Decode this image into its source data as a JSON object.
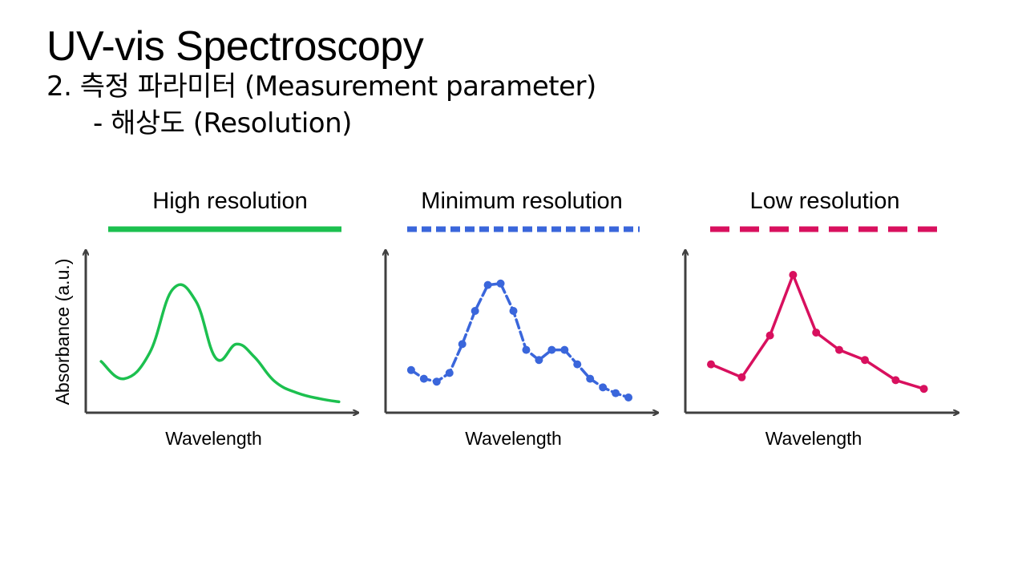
{
  "slide": {
    "title": "UV-vis Spectroscopy",
    "subtitle": "2.  측정 파라미터 (Measurement parameter)",
    "subsubtitle": "- 해상도 (Resolution)"
  },
  "colors": {
    "high": "#1cc04f",
    "minimum": "#3a66db",
    "low": "#d8105e",
    "axis": "#404040"
  },
  "chart_data": [
    {
      "type": "line",
      "title": "High resolution",
      "legend_style": "solid",
      "xlabel": "Wavelength",
      "ylabel": "Absorbance (a.u.)",
      "xlim": [
        0,
        10
      ],
      "ylim": [
        0,
        10
      ],
      "x": [
        0.6,
        1.5,
        2.5,
        3.4,
        4.3,
        5.1,
        5.9,
        6.6,
        7.4,
        8.3,
        9.2,
        9.9
      ],
      "values": [
        3.0,
        1.8,
        3.6,
        8.0,
        7.2,
        3.2,
        4.2,
        3.3,
        1.6,
        0.8,
        0.4,
        0.2
      ],
      "markers": false,
      "smooth": true
    },
    {
      "type": "line",
      "title": "Minimum resolution",
      "legend_style": "dashed",
      "xlabel": "Wavelength",
      "ylabel": "",
      "xlim": [
        0,
        10
      ],
      "ylim": [
        0,
        10
      ],
      "x": [
        1.0,
        1.5,
        2.0,
        2.5,
        3.0,
        3.5,
        4.0,
        4.5,
        5.0,
        5.5,
        6.0,
        6.5,
        7.0,
        7.5,
        8.0,
        8.5,
        9.0,
        9.5
      ],
      "values": [
        2.4,
        1.8,
        1.6,
        2.2,
        4.2,
        6.5,
        8.3,
        8.4,
        6.5,
        3.8,
        3.1,
        3.8,
        3.8,
        2.8,
        1.8,
        1.2,
        0.8,
        0.5
      ],
      "markers": true,
      "smooth": false
    },
    {
      "type": "line",
      "title": "Low resolution",
      "legend_style": "long-dashed",
      "xlabel": "Wavelength",
      "ylabel": "",
      "xlim": [
        0,
        10
      ],
      "ylim": [
        0,
        10
      ],
      "x": [
        1.0,
        2.2,
        3.3,
        4.2,
        5.1,
        6.0,
        7.0,
        8.2,
        9.3
      ],
      "values": [
        2.8,
        1.9,
        4.8,
        9.0,
        5.0,
        3.8,
        3.1,
        1.7,
        1.1
      ],
      "markers": true,
      "smooth": false
    }
  ]
}
